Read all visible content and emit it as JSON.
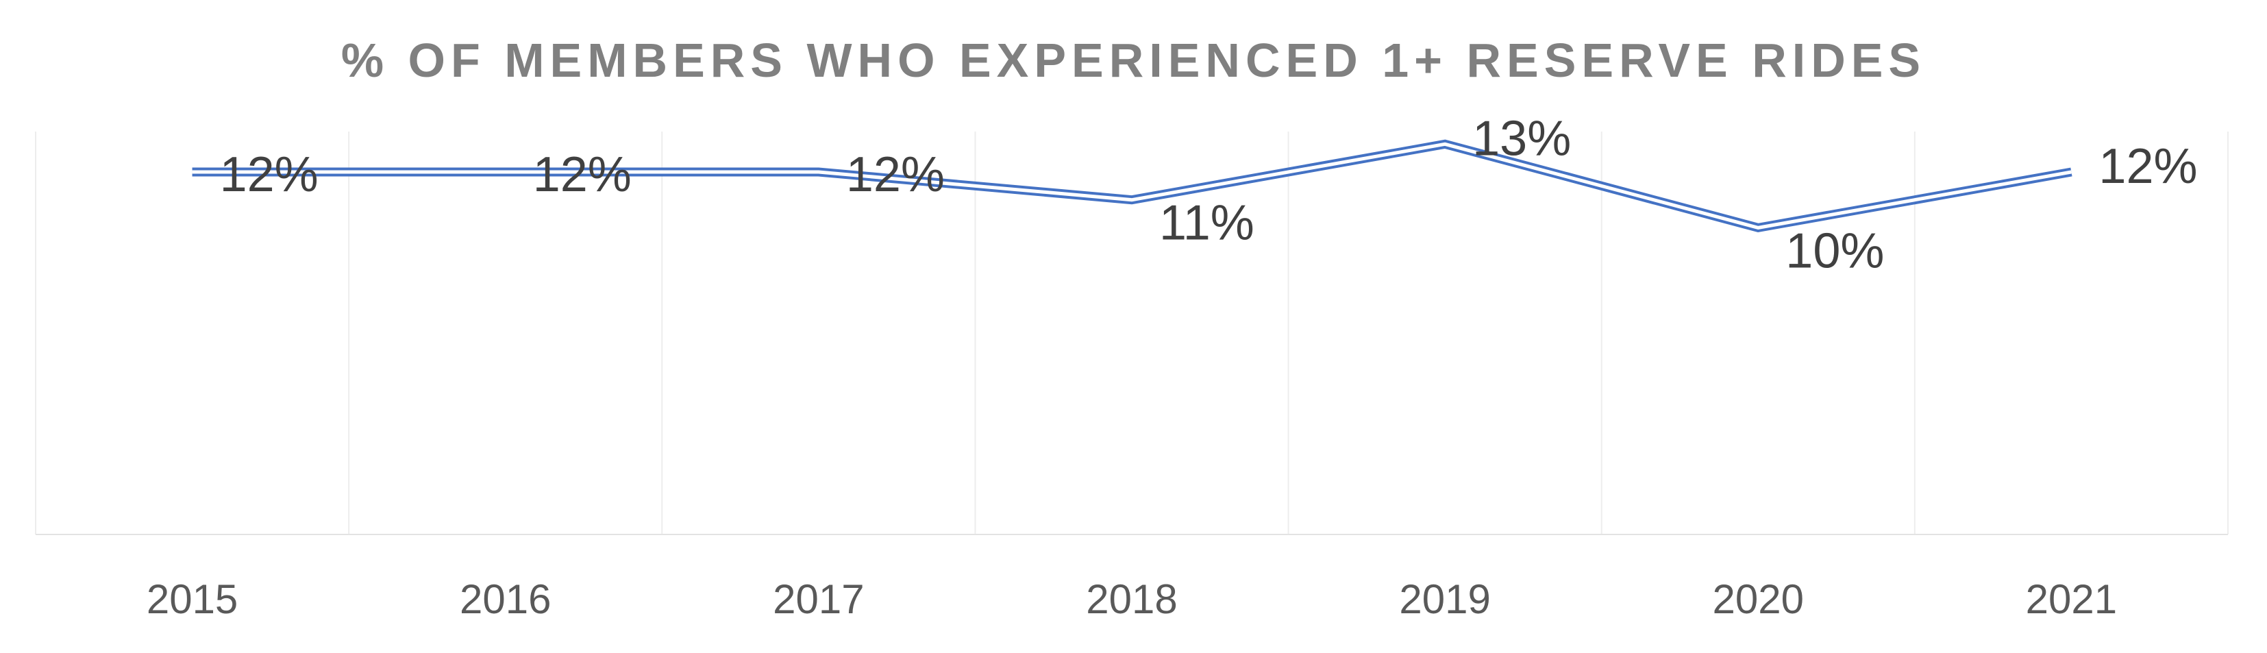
{
  "chart_data": {
    "type": "line",
    "title": "% OF MEMBERS WHO EXPERIENCED 1+ RESERVE RIDES",
    "categories": [
      "2015",
      "2016",
      "2017",
      "2018",
      "2019",
      "2020",
      "2021"
    ],
    "series": [
      {
        "values": [
          0.12,
          0.12,
          0.12,
          0.11,
          0.13,
          0.1,
          0.12
        ],
        "labels": [
          "12%",
          "12%",
          "12%",
          "11%",
          "13%",
          "10%",
          "12%"
        ]
      }
    ],
    "xlabel": "",
    "ylabel": "",
    "ylim": [
      -0.01,
      0.1345
    ],
    "grid": "vertical",
    "legend": "none",
    "line_color": "#4472C4",
    "title_color": "#808080",
    "tick_label_color": "#595959",
    "data_label_color": "#404040",
    "gridline_color": "#EDEDED"
  }
}
